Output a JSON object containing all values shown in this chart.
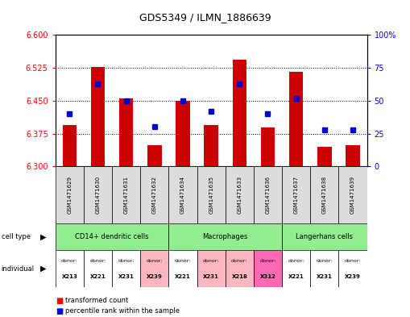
{
  "title": "GDS5349 / ILMN_1886639",
  "samples": [
    "GSM1471629",
    "GSM1471630",
    "GSM1471631",
    "GSM1471632",
    "GSM1471634",
    "GSM1471635",
    "GSM1471633",
    "GSM1471636",
    "GSM1471637",
    "GSM1471638",
    "GSM1471639"
  ],
  "red_values": [
    6.395,
    6.527,
    6.455,
    6.348,
    6.449,
    6.395,
    6.543,
    6.388,
    6.515,
    6.345,
    6.348
  ],
  "blue_values": [
    40,
    63,
    50,
    30,
    50,
    42,
    63,
    40,
    52,
    28,
    28
  ],
  "ylim_left": [
    6.3,
    6.6
  ],
  "ylim_right": [
    0,
    100
  ],
  "yticks_left": [
    6.3,
    6.375,
    6.45,
    6.525,
    6.6
  ],
  "yticks_right": [
    0,
    25,
    50,
    75,
    100
  ],
  "cell_type_groups": [
    {
      "label": "CD14+ dendritic cells",
      "start": 0,
      "end": 4,
      "color": "#90EE90"
    },
    {
      "label": "Macrophages",
      "start": 4,
      "end": 8,
      "color": "#90EE90"
    },
    {
      "label": "Langerhans cells",
      "start": 8,
      "end": 11,
      "color": "#90EE90"
    }
  ],
  "individuals": [
    {
      "donor": "X213",
      "col": 0,
      "color": "#FFFFFF"
    },
    {
      "donor": "X221",
      "col": 1,
      "color": "#FFFFFF"
    },
    {
      "donor": "X231",
      "col": 2,
      "color": "#FFFFFF"
    },
    {
      "donor": "X239",
      "col": 3,
      "color": "#FFB6C1"
    },
    {
      "donor": "X221",
      "col": 4,
      "color": "#FFFFFF"
    },
    {
      "donor": "X231",
      "col": 5,
      "color": "#FFB6C1"
    },
    {
      "donor": "X218",
      "col": 6,
      "color": "#FFB6C1"
    },
    {
      "donor": "X312",
      "col": 7,
      "color": "#FF69B4"
    },
    {
      "donor": "X221",
      "col": 8,
      "color": "#FFFFFF"
    },
    {
      "donor": "X231",
      "col": 9,
      "color": "#FFFFFF"
    },
    {
      "donor": "X239",
      "col": 10,
      "color": "#FFFFFF"
    }
  ],
  "bar_color": "#CC0000",
  "dot_color": "#0000CC",
  "bar_width": 0.5,
  "base_value": 6.3,
  "grid_ticks": [
    6.375,
    6.45,
    6.525
  ],
  "sample_bg": "#DCDCDC",
  "legend_red": "transformed count",
  "legend_blue": "percentile rank within the sample"
}
